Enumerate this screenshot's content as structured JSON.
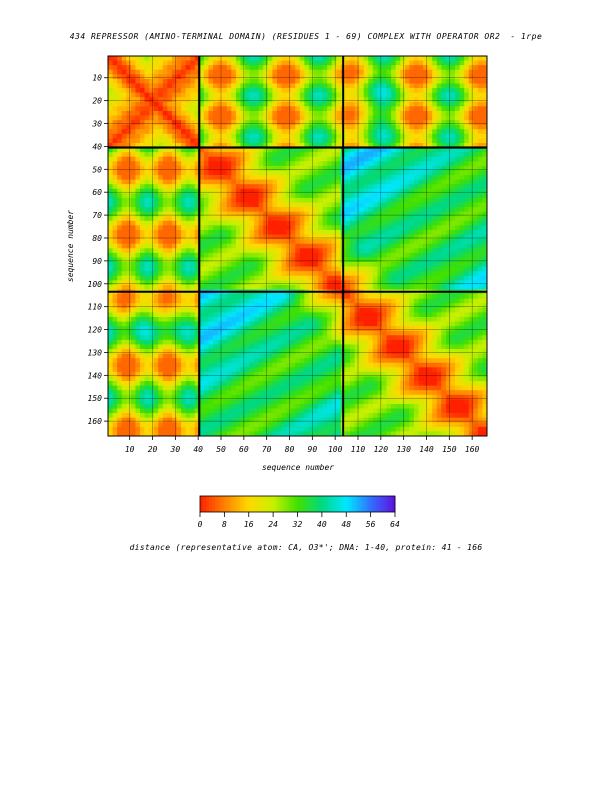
{
  "page": {
    "title_left": "434 REPRESSOR (AMINO-TERMINAL DOMAIN) (RESIDUES 1 - 69) COMPLEX WITH OPERATOR OR2",
    "title_right": "- 1rpe"
  },
  "chart_data": {
    "type": "heatmap",
    "title": "434 REPRESSOR (AMINO-TERMINAL DOMAIN) (RESIDUES 1 - 69) COMPLEX WITH OPERATOR OR2 - 1rpe",
    "xlabel": "sequence number",
    "ylabel": "sequence number",
    "x_ticks": [
      10,
      20,
      30,
      40,
      50,
      60,
      70,
      80,
      90,
      100,
      110,
      120,
      130,
      140,
      150,
      160
    ],
    "y_ticks": [
      10,
      20,
      30,
      40,
      50,
      60,
      70,
      80,
      90,
      100,
      110,
      120,
      130,
      140,
      150,
      160
    ],
    "xlim": [
      1,
      166
    ],
    "ylim": [
      1,
      166
    ],
    "segments": [
      {
        "range": [
          1,
          40
        ]
      },
      {
        "range": [
          41,
          103
        ]
      },
      {
        "range": [
          104,
          166
        ]
      }
    ],
    "colorbar": {
      "ticks": [
        0,
        8,
        16,
        24,
        32,
        40,
        48,
        56,
        64
      ],
      "range": [
        0,
        64
      ],
      "colors": [
        "#ff2000",
        "#ff8000",
        "#ffd800",
        "#c8f000",
        "#40e000",
        "#00d880",
        "#00e8ff",
        "#3070ff",
        "#6010e0"
      ]
    },
    "colorbar_label": "distance (representative atom: CA, O3*'; DNA: 1-40, protein: 41 - 166",
    "grid": true
  }
}
